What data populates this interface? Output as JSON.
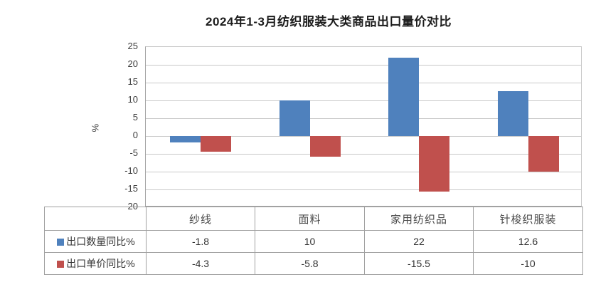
{
  "title": "2024年1-3月纺织服装大类商品出口量价对比",
  "chart_data": {
    "type": "bar",
    "title": "2024年1-3月纺织服装大类商品出口量价对比",
    "xlabel": "",
    "ylabel": "%",
    "ylim": [
      -20,
      25
    ],
    "yticks": [
      25,
      20,
      15,
      10,
      5,
      0,
      -5,
      -10,
      -15,
      -20
    ],
    "grid": true,
    "legend_position": "data-table-below",
    "categories": [
      "纱线",
      "面料",
      "家用纺织品",
      "针梭织服装"
    ],
    "series": [
      {
        "name": "出口数量同比%",
        "color": "#4F81BD",
        "values": [
          -1.8,
          10,
          22,
          12.6
        ]
      },
      {
        "name": "出口单价同比%",
        "color": "#C0504D",
        "values": [
          -4.3,
          -5.8,
          -15.5,
          -10
        ]
      }
    ]
  },
  "data_table": {
    "row1": {
      "name": "出口数量同比%",
      "values": [
        "-1.8",
        "10",
        "22",
        "12.6"
      ]
    },
    "row2": {
      "name": "出口单价同比%",
      "values": [
        "-4.3",
        "-5.8",
        "-15.5",
        "-10"
      ]
    }
  },
  "colors": {
    "series1": "#4F81BD",
    "series2": "#C0504D",
    "gridline": "#c9c9c9",
    "table_border": "#a0a0a0",
    "background": "#ffffff"
  }
}
